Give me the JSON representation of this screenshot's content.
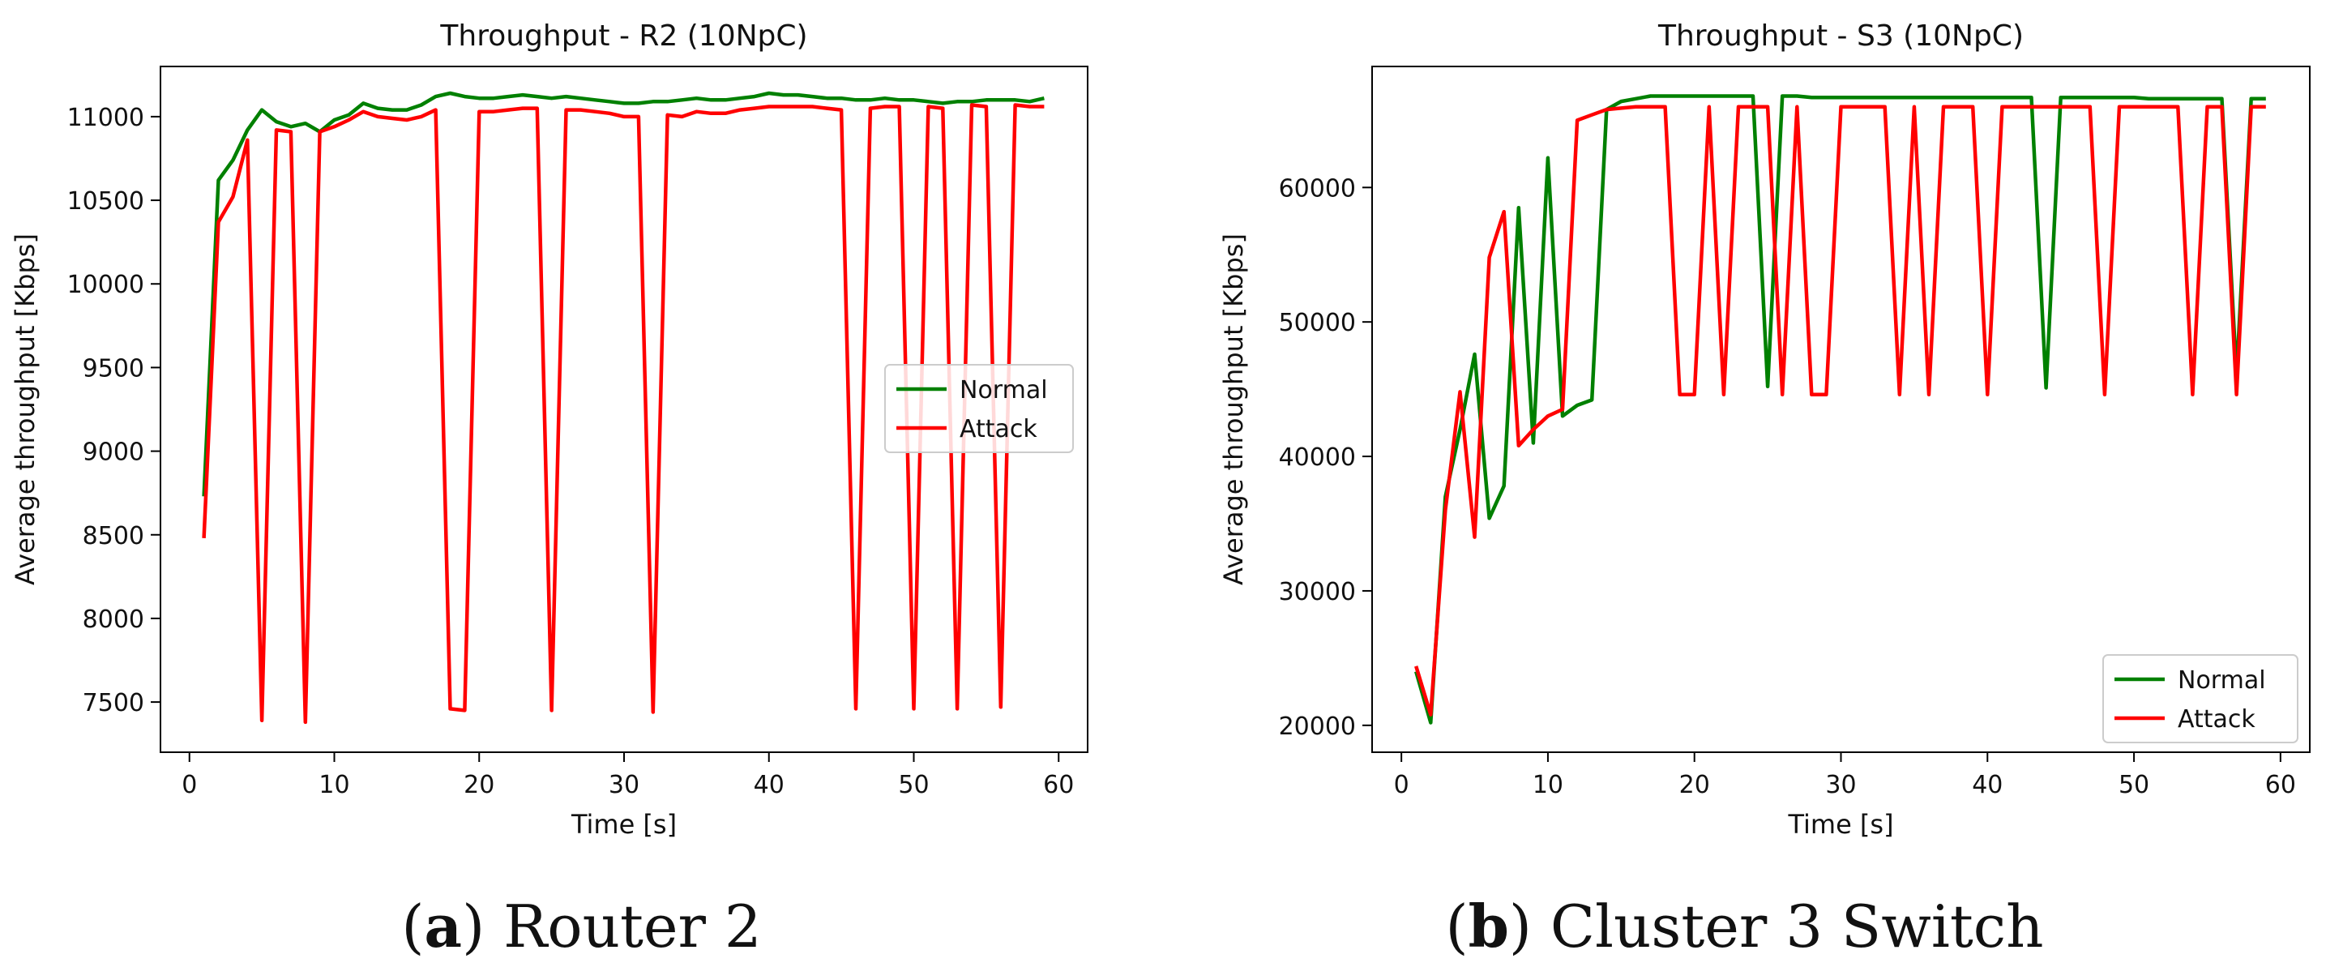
{
  "chart_data": [
    {
      "type": "line",
      "title": "Throughput - R2 (10NpC)",
      "xlabel": "Time [s]",
      "ylabel": "Average throughput [Kbps]",
      "xlim": [
        -2,
        62
      ],
      "ylim": [
        7200,
        11300
      ],
      "xticks": [
        0,
        10,
        20,
        30,
        40,
        50,
        60
      ],
      "yticks": [
        7500,
        8000,
        8500,
        9000,
        9500,
        10000,
        10500,
        11000
      ],
      "legend_position": "center-right",
      "caption_letter": "a",
      "caption_text": "Router 2",
      "series": [
        {
          "name": "Normal",
          "color": "#008000",
          "x": [
            1,
            2,
            3,
            4,
            5,
            6,
            7,
            8,
            9,
            10,
            11,
            12,
            13,
            14,
            15,
            16,
            17,
            18,
            19,
            20,
            21,
            22,
            23,
            24,
            25,
            26,
            27,
            28,
            29,
            30,
            31,
            32,
            33,
            34,
            35,
            36,
            37,
            38,
            39,
            40,
            41,
            42,
            43,
            44,
            45,
            46,
            47,
            48,
            49,
            50,
            51,
            52,
            53,
            54,
            55,
            56,
            57,
            58,
            59
          ],
          "y": [
            8730,
            10620,
            10740,
            10920,
            11040,
            10970,
            10940,
            10960,
            10910,
            10980,
            11010,
            11080,
            11050,
            11040,
            11040,
            11070,
            11120,
            11140,
            11120,
            11110,
            11110,
            11120,
            11130,
            11120,
            11110,
            11120,
            11110,
            11100,
            11090,
            11080,
            11080,
            11090,
            11090,
            11100,
            11110,
            11100,
            11100,
            11110,
            11120,
            11140,
            11130,
            11130,
            11120,
            11110,
            11110,
            11100,
            11100,
            11110,
            11100,
            11100,
            11090,
            11080,
            11090,
            11090,
            11100,
            11100,
            11100,
            11090,
            11110
          ]
        },
        {
          "name": "Attack",
          "color": "#ff0000",
          "x": [
            1,
            2,
            3,
            4,
            5,
            6,
            7,
            8,
            9,
            10,
            11,
            12,
            13,
            14,
            15,
            16,
            17,
            18,
            19,
            20,
            21,
            22,
            23,
            24,
            25,
            26,
            27,
            28,
            29,
            30,
            31,
            32,
            33,
            34,
            35,
            36,
            37,
            38,
            39,
            40,
            41,
            42,
            43,
            44,
            45,
            46,
            47,
            48,
            49,
            50,
            51,
            52,
            53,
            54,
            55,
            56,
            57,
            58,
            59
          ],
          "y": [
            8480,
            10370,
            10520,
            10860,
            7390,
            10920,
            10910,
            7380,
            10910,
            10940,
            10980,
            11030,
            11000,
            10990,
            10980,
            11000,
            11040,
            7460,
            7450,
            11030,
            11030,
            11040,
            11050,
            11050,
            7450,
            11040,
            11040,
            11030,
            11020,
            11000,
            11000,
            7440,
            11010,
            11000,
            11030,
            11020,
            11020,
            11040,
            11050,
            11060,
            11060,
            11060,
            11060,
            11050,
            11040,
            7460,
            11050,
            11060,
            11060,
            7460,
            11060,
            11050,
            7460,
            11070,
            11060,
            7470,
            11070,
            11060,
            11060
          ]
        }
      ]
    },
    {
      "type": "line",
      "title": "Throughput - S3 (10NpC)",
      "xlabel": "Time [s]",
      "ylabel": "Average throughput [Kbps]",
      "xlim": [
        -2,
        62
      ],
      "ylim": [
        18000,
        69000
      ],
      "xticks": [
        0,
        10,
        20,
        30,
        40,
        50,
        60
      ],
      "yticks": [
        20000,
        30000,
        40000,
        50000,
        60000
      ],
      "legend_position": "lower-right",
      "caption_letter": "b",
      "caption_text": "Cluster 3 Switch",
      "series": [
        {
          "name": "Normal",
          "color": "#008000",
          "x": [
            1,
            2,
            3,
            4,
            5,
            6,
            7,
            8,
            9,
            10,
            11,
            12,
            13,
            14,
            15,
            16,
            17,
            18,
            19,
            20,
            21,
            22,
            23,
            24,
            25,
            26,
            27,
            28,
            29,
            30,
            31,
            32,
            33,
            34,
            35,
            36,
            37,
            38,
            39,
            40,
            41,
            42,
            43,
            44,
            45,
            46,
            47,
            48,
            49,
            50,
            51,
            52,
            53,
            54,
            55,
            56,
            57,
            58,
            59
          ],
          "y": [
            24000,
            20200,
            37000,
            42000,
            47600,
            35400,
            37800,
            58500,
            41000,
            62200,
            43000,
            43800,
            44200,
            65800,
            66400,
            66600,
            66800,
            66800,
            66800,
            66800,
            66800,
            66800,
            66800,
            66800,
            45200,
            66800,
            66800,
            66700,
            66700,
            66700,
            66700,
            66700,
            66700,
            66700,
            66700,
            66700,
            66700,
            66700,
            66700,
            66700,
            66700,
            66700,
            66700,
            45100,
            66700,
            66700,
            66700,
            66700,
            66700,
            66700,
            66600,
            66600,
            66600,
            66600,
            66600,
            66600,
            46000,
            66600,
            66600
          ]
        },
        {
          "name": "Attack",
          "color": "#ff0000",
          "x": [
            1,
            2,
            3,
            4,
            5,
            6,
            7,
            8,
            9,
            10,
            11,
            12,
            13,
            14,
            15,
            16,
            17,
            18,
            19,
            20,
            21,
            22,
            23,
            24,
            25,
            26,
            27,
            28,
            29,
            30,
            31,
            32,
            33,
            34,
            35,
            36,
            37,
            38,
            39,
            40,
            41,
            42,
            43,
            44,
            45,
            46,
            47,
            48,
            49,
            50,
            51,
            52,
            53,
            54,
            55,
            56,
            57,
            58,
            59
          ],
          "y": [
            24400,
            20800,
            36000,
            44800,
            34000,
            54800,
            58200,
            40800,
            42000,
            43000,
            43500,
            65000,
            65400,
            65800,
            65900,
            66000,
            66000,
            66000,
            44600,
            44600,
            66000,
            44600,
            66000,
            66000,
            66000,
            44600,
            66000,
            44600,
            44600,
            66000,
            66000,
            66000,
            66000,
            44600,
            66000,
            44600,
            66000,
            66000,
            66000,
            44600,
            66000,
            66000,
            66000,
            66000,
            66000,
            66000,
            66000,
            44600,
            66000,
            66000,
            66000,
            66000,
            66000,
            44600,
            66000,
            66000,
            44600,
            66000,
            66000
          ]
        }
      ]
    }
  ]
}
